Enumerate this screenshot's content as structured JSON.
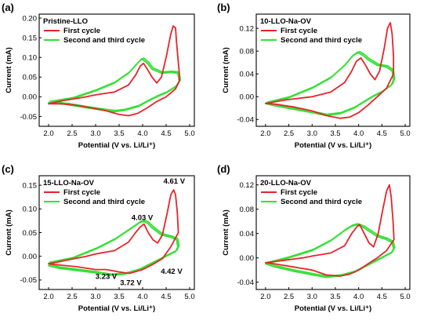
{
  "colors": {
    "first": "#e8232a",
    "second": "#33e033"
  },
  "chart_data": [
    {
      "type": "line",
      "panel_label": "(a)",
      "sample": "Pristine-LLO",
      "xlabel": "Potential (V vs. Li/Li⁺)",
      "ylabel": "Current (mA)",
      "xlim": [
        1.8,
        5.1
      ],
      "ylim": [
        -0.075,
        0.21
      ],
      "xticks": [
        2.0,
        2.5,
        3.0,
        3.5,
        4.0,
        4.5,
        5.0
      ],
      "xtick_labels": [
        "2.0",
        "2.5",
        "3.0",
        "3.5",
        "4.0",
        "4.5",
        "5.0"
      ],
      "yticks": [
        -0.05,
        0.0,
        0.05,
        0.1,
        0.15,
        0.2
      ],
      "ytick_labels": [
        "-0.05",
        "0.00",
        "0.05",
        "0.10",
        "0.15",
        "0.20"
      ],
      "legend": [
        "First cycle",
        "Second and third cycle"
      ],
      "annotations": [],
      "series": [
        {
          "name": "First cycle",
          "x": [
            3.0,
            3.4,
            3.7,
            3.85,
            3.95,
            4.02,
            4.1,
            4.2,
            4.3,
            4.4,
            4.5,
            4.6,
            4.65,
            4.7,
            4.72,
            4.75,
            4.78,
            4.78,
            4.7,
            4.5,
            4.3,
            4.1,
            3.9,
            3.7,
            3.5,
            3.2,
            2.9,
            2.6,
            2.3,
            2.0,
            2.3,
            2.8,
            3.0
          ],
          "y": [
            0.005,
            0.012,
            0.03,
            0.055,
            0.078,
            0.085,
            0.07,
            0.05,
            0.035,
            0.05,
            0.1,
            0.16,
            0.18,
            0.175,
            0.14,
            0.1,
            0.06,
            0.04,
            0.02,
            0.0,
            -0.012,
            -0.028,
            -0.042,
            -0.048,
            -0.045,
            -0.035,
            -0.028,
            -0.022,
            -0.018,
            -0.018,
            -0.01,
            0.0,
            0.005
          ]
        },
        {
          "name": "Second and third cycle",
          "x": [
            2.0,
            2.5,
            3.0,
            3.4,
            3.7,
            3.85,
            3.95,
            4.0,
            4.1,
            4.2,
            4.4,
            4.6,
            4.75,
            4.78,
            4.7,
            4.5,
            4.3,
            4.1,
            3.9,
            3.6,
            3.4,
            3.2,
            2.8,
            2.4,
            2.0
          ],
          "y": [
            -0.015,
            -0.005,
            0.015,
            0.035,
            0.06,
            0.08,
            0.093,
            0.095,
            0.085,
            0.07,
            0.06,
            0.062,
            0.06,
            0.04,
            0.025,
            0.01,
            0.0,
            -0.012,
            -0.025,
            -0.035,
            -0.038,
            -0.035,
            -0.028,
            -0.02,
            -0.015
          ]
        }
      ]
    },
    {
      "type": "line",
      "panel_label": "(b)",
      "sample": "10-LLO-Na-OV",
      "xlabel": "Potential (V vs. Li/Li⁺)",
      "ylabel": "Current (mA)",
      "xlim": [
        1.8,
        5.1
      ],
      "ylim": [
        -0.052,
        0.145
      ],
      "xticks": [
        2.0,
        2.5,
        3.0,
        3.5,
        4.0,
        4.5,
        5.0
      ],
      "xtick_labels": [
        "2.0",
        "2.5",
        "3.0",
        "3.5",
        "4.0",
        "4.5",
        "5.0"
      ],
      "yticks": [
        -0.04,
        0.0,
        0.04,
        0.08,
        0.12
      ],
      "ytick_labels": [
        "-0.04",
        "0.00",
        "0.04",
        "0.08",
        "0.12"
      ],
      "legend": [
        "First cycle",
        "Second and third cycle"
      ],
      "annotations": [],
      "series": [
        {
          "name": "First cycle",
          "x": [
            3.0,
            3.4,
            3.7,
            3.85,
            3.95,
            4.05,
            4.15,
            4.25,
            4.35,
            4.45,
            4.55,
            4.62,
            4.68,
            4.72,
            4.75,
            4.75,
            4.6,
            4.4,
            4.2,
            4.0,
            3.8,
            3.6,
            3.3,
            3.0,
            2.6,
            2.2,
            2.0,
            2.4,
            2.8,
            3.0
          ],
          "y": [
            0.0,
            0.008,
            0.025,
            0.045,
            0.062,
            0.068,
            0.055,
            0.04,
            0.03,
            0.045,
            0.085,
            0.12,
            0.13,
            0.11,
            0.07,
            0.04,
            0.015,
            0.0,
            -0.015,
            -0.028,
            -0.036,
            -0.038,
            -0.033,
            -0.025,
            -0.018,
            -0.013,
            -0.012,
            -0.006,
            -0.002,
            0.0
          ]
        },
        {
          "name": "Second and third cycle",
          "x": [
            2.0,
            2.5,
            3.0,
            3.4,
            3.7,
            3.85,
            3.95,
            4.0,
            4.1,
            4.2,
            4.4,
            4.6,
            4.72,
            4.75,
            4.7,
            4.5,
            4.3,
            4.1,
            3.9,
            3.6,
            3.3,
            3.0,
            2.6,
            2.2,
            2.0
          ],
          "y": [
            -0.012,
            -0.002,
            0.015,
            0.033,
            0.055,
            0.07,
            0.076,
            0.077,
            0.072,
            0.065,
            0.055,
            0.052,
            0.045,
            0.03,
            0.02,
            0.008,
            0.0,
            -0.01,
            -0.02,
            -0.03,
            -0.033,
            -0.028,
            -0.022,
            -0.016,
            -0.012
          ]
        }
      ]
    },
    {
      "type": "line",
      "panel_label": "(c)",
      "sample": "15-LLO-Na-OV",
      "xlabel": "Potential (V vs. Li/Li⁺)",
      "ylabel": "Current (mA)",
      "xlim": [
        1.8,
        5.1
      ],
      "ylim": [
        -0.07,
        0.17
      ],
      "xticks": [
        2.0,
        2.5,
        3.0,
        3.5,
        4.0,
        4.5,
        5.0
      ],
      "xtick_labels": [
        "2.0",
        "2.5",
        "3.0",
        "3.5",
        "4.0",
        "4.5",
        "5.0"
      ],
      "yticks": [
        -0.05,
        0.0,
        0.05,
        0.1,
        0.15
      ],
      "ytick_labels": [
        "-0.05",
        "0.00",
        "0.05",
        "0.10",
        "0.15"
      ],
      "legend": [
        "First cycle",
        "Second and third cycle"
      ],
      "annotations": [
        {
          "text": "4.61 V",
          "x": 4.61,
          "y": 0.14
        },
        {
          "text": "4.03 V",
          "x": 4.03,
          "y": 0.07
        },
        {
          "text": "3.23 V",
          "x": 3.23,
          "y": -0.028
        },
        {
          "text": "3.72 V",
          "x": 3.72,
          "y": -0.038
        },
        {
          "text": "4.42 V",
          "x": 4.42,
          "y": -0.02
        }
      ],
      "series": [
        {
          "name": "First cycle",
          "x": [
            3.0,
            3.4,
            3.7,
            3.85,
            3.95,
            4.03,
            4.12,
            4.22,
            4.32,
            4.42,
            4.52,
            4.6,
            4.66,
            4.7,
            4.74,
            4.76,
            4.6,
            4.42,
            4.2,
            4.0,
            3.72,
            3.5,
            3.23,
            3.0,
            2.6,
            2.2,
            2.0,
            2.4,
            2.8,
            3.0
          ],
          "y": [
            0.005,
            0.012,
            0.03,
            0.05,
            0.062,
            0.068,
            0.05,
            0.035,
            0.028,
            0.045,
            0.09,
            0.13,
            0.14,
            0.13,
            0.09,
            0.05,
            0.02,
            -0.005,
            -0.018,
            -0.028,
            -0.036,
            -0.033,
            -0.028,
            -0.028,
            -0.022,
            -0.018,
            -0.016,
            -0.008,
            0.0,
            0.005
          ]
        },
        {
          "name": "Second and third cycle",
          "x": [
            2.0,
            2.5,
            3.0,
            3.4,
            3.7,
            3.85,
            3.95,
            4.03,
            4.1,
            4.2,
            4.4,
            4.6,
            4.72,
            4.75,
            4.7,
            4.5,
            4.3,
            4.1,
            3.9,
            3.6,
            3.3,
            3.0,
            2.6,
            2.2,
            2.0
          ],
          "y": [
            -0.015,
            -0.005,
            0.015,
            0.035,
            0.055,
            0.065,
            0.072,
            0.073,
            0.07,
            0.06,
            0.045,
            0.04,
            0.035,
            0.02,
            0.01,
            0.0,
            -0.01,
            -0.02,
            -0.03,
            -0.038,
            -0.04,
            -0.035,
            -0.03,
            -0.025,
            -0.02
          ]
        }
      ]
    },
    {
      "type": "line",
      "panel_label": "(d)",
      "sample": "20-LLO-Na-OV",
      "xlabel": "Potential (V vs. Li/Li⁺)",
      "ylabel": "Current (mA)",
      "xlim": [
        1.8,
        5.1
      ],
      "ylim": [
        -0.052,
        0.135
      ],
      "xticks": [
        2.0,
        2.5,
        3.0,
        3.5,
        4.0,
        4.5,
        5.0
      ],
      "xtick_labels": [
        "2.0",
        "2.5",
        "3.0",
        "3.5",
        "4.0",
        "4.5",
        "5.0"
      ],
      "yticks": [
        -0.04,
        0.0,
        0.04,
        0.08,
        0.12
      ],
      "ytick_labels": [
        "-0.04",
        "0.00",
        "0.04",
        "0.08",
        "0.12"
      ],
      "legend": [
        "First cycle",
        "Second and third cycle"
      ],
      "annotations": [],
      "series": [
        {
          "name": "First cycle",
          "x": [
            3.0,
            3.4,
            3.7,
            3.85,
            3.95,
            4.02,
            4.12,
            4.22,
            4.32,
            4.42,
            4.52,
            4.6,
            4.66,
            4.7,
            4.74,
            4.76,
            4.6,
            4.4,
            4.2,
            4.0,
            3.8,
            3.6,
            3.3,
            3.0,
            2.6,
            2.2,
            2.0,
            2.4,
            2.8,
            3.0
          ],
          "y": [
            0.003,
            0.008,
            0.02,
            0.04,
            0.05,
            0.055,
            0.04,
            0.025,
            0.018,
            0.04,
            0.08,
            0.11,
            0.12,
            0.1,
            0.06,
            0.03,
            0.012,
            0.0,
            -0.01,
            -0.02,
            -0.027,
            -0.03,
            -0.028,
            -0.02,
            -0.015,
            -0.01,
            -0.008,
            -0.004,
            0.0,
            0.003
          ]
        },
        {
          "name": "Second and third cycle",
          "x": [
            2.0,
            2.5,
            3.0,
            3.4,
            3.7,
            3.85,
            3.95,
            4.0,
            4.1,
            4.2,
            4.4,
            4.6,
            4.72,
            4.75,
            4.7,
            4.5,
            4.3,
            4.1,
            3.9,
            3.6,
            3.3,
            3.0,
            2.6,
            2.2,
            2.0
          ],
          "y": [
            -0.01,
            0.0,
            0.012,
            0.028,
            0.045,
            0.052,
            0.054,
            0.053,
            0.05,
            0.045,
            0.035,
            0.03,
            0.025,
            0.015,
            0.008,
            0.0,
            -0.008,
            -0.016,
            -0.024,
            -0.03,
            -0.032,
            -0.028,
            -0.022,
            -0.015,
            -0.01
          ]
        }
      ]
    }
  ]
}
